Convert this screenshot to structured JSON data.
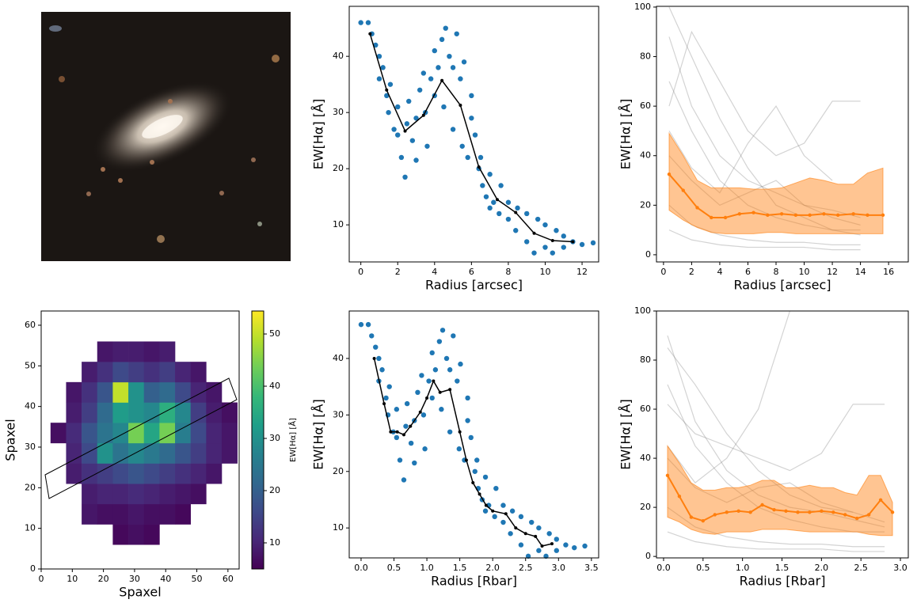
{
  "chart_data": [
    {
      "type": "scatter",
      "xlabel": "Radius [arcsec]",
      "ylabel": "EW[Hα] [Å]",
      "xlim": [
        -0.63,
        12.9
      ],
      "ylim": [
        3.4,
        48.9
      ],
      "xticks": [
        0,
        2,
        4,
        6,
        8,
        10,
        12
      ],
      "yticks": [
        10,
        20,
        30,
        40
      ],
      "points": {
        "color": "#1f77b4",
        "x": [
          0,
          0.4,
          0.6,
          0.8,
          1.0,
          1.0,
          1.2,
          1.4,
          1.5,
          1.6,
          1.8,
          2.0,
          2.0,
          2.2,
          2.4,
          2.5,
          2.6,
          2.8,
          3.0,
          3.0,
          3.2,
          3.4,
          3.5,
          3.6,
          3.8,
          4.0,
          4.0,
          4.2,
          4.4,
          4.5,
          4.6,
          4.8,
          5.0,
          5.0,
          5.2,
          5.4,
          5.5,
          5.6,
          5.8,
          6.0,
          6.0,
          6.2,
          6.4,
          6.5,
          6.6,
          6.8,
          7.0,
          7.0,
          7.2,
          7.5,
          7.6,
          8.0,
          8.0,
          8.4,
          8.5,
          9.0,
          9.0,
          9.4,
          9.6,
          10.0,
          10.0,
          10.4,
          10.6,
          11.0,
          11.0,
          11.5,
          12.0,
          12.6
        ],
        "y": [
          46,
          46,
          44,
          42,
          40,
          36,
          38,
          33,
          30,
          35,
          27,
          26,
          31,
          22,
          18.5,
          28,
          32,
          25,
          29,
          21.5,
          34,
          37,
          30,
          24,
          36,
          41,
          33,
          38,
          43,
          31,
          45,
          40,
          38,
          27,
          44,
          36,
          24,
          39,
          22,
          33,
          29,
          26,
          20,
          22,
          17,
          15,
          19,
          13,
          14,
          12,
          17,
          11,
          14,
          9,
          13,
          7,
          12,
          5,
          11,
          6,
          10,
          5,
          9,
          6,
          8,
          7,
          6.5,
          6.8
        ]
      },
      "line": {
        "color": "#000000",
        "x": [
          0.5,
          1.4,
          2.4,
          3.4,
          4.4,
          5.4,
          6.4,
          7.4,
          8.4,
          9.4,
          10.4,
          11.5
        ],
        "y": [
          44,
          34,
          26.7,
          29.5,
          35.7,
          31.3,
          20.3,
          14.5,
          12.2,
          8.5,
          7.2,
          7.0
        ]
      }
    },
    {
      "type": "line",
      "xlabel": "Radius [arcsec]",
      "ylabel": "EW[Hα] [Å]",
      "xlim": [
        -0.5,
        17.4
      ],
      "ylim": [
        -2.9,
        100.3
      ],
      "xticks": [
        0,
        2,
        4,
        6,
        8,
        10,
        12,
        14,
        16
      ],
      "yticks": [
        0,
        20,
        40,
        60,
        80,
        100
      ],
      "lines_color": "#808080",
      "lines_x": [
        0.4,
        2,
        4,
        6,
        8,
        10,
        12,
        14
      ],
      "lines": [
        [
          88,
          60,
          40,
          30,
          25,
          20,
          18,
          15
        ],
        [
          70,
          50,
          30,
          20,
          15,
          12,
          10,
          10
        ],
        [
          50,
          35,
          25,
          45,
          60,
          40,
          30,
          null
        ],
        [
          20,
          12,
          8,
          6,
          5,
          5,
          4,
          4
        ],
        [
          100,
          80,
          55,
          35,
          20,
          15,
          10,
          8
        ],
        [
          40,
          30,
          20,
          25,
          30,
          20,
          15,
          12
        ],
        [
          10,
          6,
          4,
          3,
          3,
          3,
          2,
          2
        ],
        [
          60,
          90,
          70,
          50,
          40,
          45,
          62,
          62
        ]
      ],
      "median": {
        "color": "#ff7f0e",
        "x": [
          0.4,
          1.4,
          2.4,
          3.4,
          4.4,
          5.4,
          6.4,
          7.4,
          8.4,
          9.4,
          10.4,
          11.4,
          12.4,
          13.5,
          14.5,
          15.6
        ],
        "y": [
          32.5,
          26,
          19,
          15,
          15,
          16.5,
          17,
          16,
          16.5,
          16,
          16,
          16.5,
          16,
          16.5,
          16,
          16
        ],
        "lower": [
          18,
          14,
          11,
          9,
          8.5,
          8.5,
          8.5,
          9,
          9,
          8.5,
          8.5,
          8.5,
          8.5,
          8.5,
          8.5,
          8.5
        ],
        "upper": [
          49,
          40,
          30,
          27,
          27,
          27,
          26.5,
          26.5,
          27,
          29,
          31,
          30,
          28.5,
          28.5,
          33,
          35
        ]
      }
    },
    {
      "type": "heatmap",
      "xlabel": "Spaxel",
      "ylabel": "Spaxel",
      "clabel": "EW[Hα] [Å]",
      "xlim": [
        0,
        63.6
      ],
      "ylim": [
        0,
        63.5
      ],
      "xticks": [
        0,
        10,
        20,
        30,
        40,
        50,
        60
      ],
      "yticks": [
        0,
        10,
        20,
        30,
        40,
        50,
        60
      ],
      "extent": [
        3,
        63,
        6,
        56
      ],
      "clim": [
        5,
        54.4
      ],
      "cticks": [
        10,
        20,
        30,
        40,
        50
      ],
      "values": [
        [
          null,
          null,
          null,
          null,
          6,
          7,
          6,
          null,
          null,
          null,
          null,
          null
        ],
        [
          null,
          null,
          8,
          7,
          7,
          8,
          7,
          7,
          6,
          null,
          null,
          null
        ],
        [
          null,
          null,
          9,
          10,
          10,
          11,
          10,
          9,
          8,
          7,
          null,
          null
        ],
        [
          null,
          9,
          12,
          14,
          16,
          18,
          16,
          14,
          12,
          10,
          8,
          null
        ],
        [
          null,
          10,
          16,
          30,
          24,
          28,
          25,
          22,
          18,
          14,
          10,
          8
        ],
        [
          7,
          11,
          18,
          24,
          28,
          44,
          34,
          44,
          26,
          16,
          10,
          8
        ],
        [
          null,
          9,
          14,
          22,
          32,
          30,
          28,
          36,
          28,
          14,
          9,
          7
        ],
        [
          null,
          8,
          12,
          18,
          50,
          30,
          20,
          22,
          16,
          10,
          8,
          null
        ],
        [
          null,
          null,
          9,
          12,
          16,
          14,
          12,
          14,
          10,
          8,
          null,
          null
        ],
        [
          null,
          null,
          null,
          8,
          9,
          9,
          8,
          9,
          null,
          null,
          null,
          null
        ]
      ]
    },
    {
      "type": "scatter",
      "xlabel": "Radius [Rbar]",
      "ylabel": "EW[Hα] [Å]",
      "xlim": [
        -0.18,
        3.61
      ],
      "ylim": [
        4.7,
        48.4
      ],
      "xticks": [
        {
          "value": 0,
          "label": "0.0"
        },
        0.5,
        {
          "value": 1,
          "label": "1.0"
        },
        1.5,
        {
          "value": 2,
          "label": "2.0"
        },
        2.5,
        {
          "value": 3,
          "label": "3.0"
        },
        3.5
      ],
      "yticks": [
        10,
        20,
        30,
        40
      ],
      "points": {
        "color": "#1f77b4",
        "x": [
          0,
          0.11,
          0.16,
          0.22,
          0.27,
          0.27,
          0.32,
          0.38,
          0.41,
          0.43,
          0.49,
          0.54,
          0.54,
          0.59,
          0.65,
          0.68,
          0.7,
          0.76,
          0.81,
          0.81,
          0.86,
          0.92,
          0.95,
          0.97,
          1.03,
          1.08,
          1.08,
          1.13,
          1.19,
          1.22,
          1.24,
          1.3,
          1.35,
          1.35,
          1.4,
          1.46,
          1.49,
          1.51,
          1.57,
          1.62,
          1.62,
          1.67,
          1.73,
          1.76,
          1.78,
          1.84,
          1.89,
          1.89,
          1.94,
          2.03,
          2.05,
          2.16,
          2.16,
          2.27,
          2.3,
          2.43,
          2.43,
          2.54,
          2.59,
          2.7,
          2.7,
          2.81,
          2.86,
          2.97,
          2.97,
          3.11,
          3.24,
          3.4
        ],
        "y": [
          46,
          46,
          44,
          42,
          40,
          36,
          38,
          33,
          30,
          35,
          27,
          26,
          31,
          22,
          18.5,
          28,
          32,
          25,
          29,
          21.5,
          34,
          37,
          30,
          24,
          36,
          41,
          33,
          38,
          43,
          31,
          45,
          40,
          38,
          27,
          44,
          36,
          24,
          39,
          22,
          33,
          29,
          26,
          20,
          22,
          17,
          15,
          19,
          13,
          14,
          12,
          17,
          11,
          14,
          9,
          13,
          7,
          12,
          5,
          11,
          6,
          10,
          5,
          9,
          6,
          8,
          7,
          6.5,
          6.8
        ]
      },
      "line": {
        "color": "#000000",
        "x": [
          0.2,
          0.35,
          0.45,
          0.55,
          0.65,
          0.75,
          0.9,
          1.0,
          1.1,
          1.2,
          1.35,
          1.5,
          1.6,
          1.7,
          1.8,
          1.9,
          2.0,
          2.2,
          2.35,
          2.5,
          2.65,
          2.75,
          2.9
        ],
        "y": [
          40,
          32,
          27,
          27,
          26.5,
          28,
          30.5,
          33,
          36,
          34,
          34.5,
          27,
          22,
          18,
          16,
          14,
          13,
          12.5,
          10,
          9,
          8.5,
          6.8,
          7.2
        ]
      }
    },
    {
      "type": "line",
      "xlabel": "Radius [Rbar]",
      "ylabel": "EW[Hα] [Å]",
      "xlim": [
        -0.09,
        3.1
      ],
      "ylim": [
        -0.6,
        100
      ],
      "xticks": [
        {
          "value": 0,
          "label": "0.0"
        },
        0.5,
        {
          "value": 1,
          "label": "1.0"
        },
        1.5,
        {
          "value": 2,
          "label": "2.0"
        },
        2.5,
        {
          "value": 3,
          "label": "3.0"
        }
      ],
      "yticks": [
        0,
        20,
        40,
        60,
        80,
        100
      ],
      "lines_color": "#808080",
      "lines_x": [
        0.05,
        0.4,
        0.8,
        1.2,
        1.6,
        2.0,
        2.4,
        2.8
      ],
      "lines": [
        [
          90,
          55,
          35,
          25,
          20,
          18,
          15,
          12
        ],
        [
          70,
          45,
          30,
          20,
          15,
          12,
          10,
          10
        ],
        [
          45,
          30,
          40,
          60,
          100,
          null,
          null,
          null
        ],
        [
          20,
          12,
          8,
          6,
          5,
          5,
          4,
          4
        ],
        [
          85,
          70,
          50,
          35,
          25,
          20,
          18,
          null
        ],
        [
          40,
          28,
          22,
          28,
          30,
          22,
          18,
          14
        ],
        [
          10,
          6,
          4,
          3,
          3,
          3,
          2,
          2
        ],
        [
          62,
          50,
          45,
          40,
          35,
          42,
          62,
          62
        ]
      ],
      "median": {
        "color": "#ff7f0e",
        "x": [
          0.05,
          0.2,
          0.35,
          0.5,
          0.65,
          0.8,
          0.95,
          1.1,
          1.25,
          1.4,
          1.55,
          1.7,
          1.85,
          2.0,
          2.15,
          2.3,
          2.45,
          2.6,
          2.75,
          2.9
        ],
        "y": [
          33,
          24.5,
          16,
          14.5,
          17,
          18,
          18.5,
          18,
          21,
          19,
          18.5,
          18,
          18,
          18.5,
          18,
          17,
          15.5,
          17,
          23,
          18
        ],
        "lower": [
          16,
          14,
          11,
          9.5,
          9,
          10,
          10,
          10,
          11,
          11,
          11,
          10.5,
          10,
          10,
          10,
          10,
          10,
          9,
          8.5,
          8.5
        ],
        "upper": [
          45,
          38,
          30,
          27,
          27,
          28,
          28,
          29,
          31,
          31,
          28,
          28,
          29,
          28,
          28,
          26,
          25,
          33,
          33,
          22
        ]
      }
    }
  ]
}
